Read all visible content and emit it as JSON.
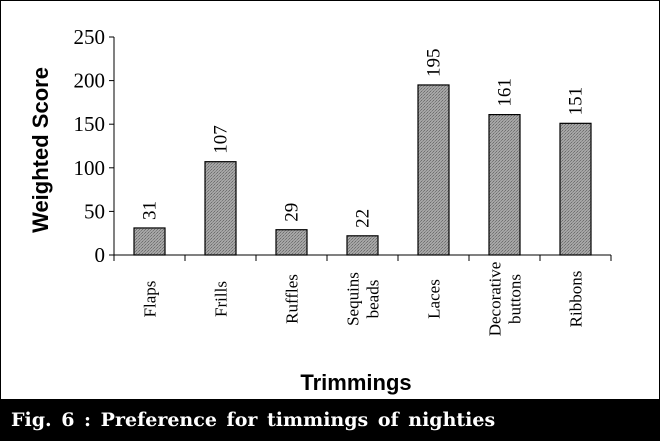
{
  "chart_data": {
    "type": "bar",
    "categories": [
      [
        "Flaps"
      ],
      [
        "Frills"
      ],
      [
        "Ruffles"
      ],
      [
        "Sequins",
        "beads"
      ],
      [
        "Laces"
      ],
      [
        "Decorative",
        "buttons"
      ],
      [
        "Ribbons"
      ]
    ],
    "values": [
      31,
      107,
      29,
      22,
      195,
      161,
      151
    ],
    "data_labels": [
      "31",
      "107",
      "29",
      "22",
      "195",
      "161",
      "151"
    ],
    "xlabel": "Trimmings",
    "ylabel": "Weighted Score",
    "ylim": [
      0,
      250
    ],
    "yticks": [
      0,
      50,
      100,
      150,
      200,
      250
    ],
    "grid": false,
    "legend": "none",
    "bar_fill": "#999999",
    "bar_stroke": "#000000"
  },
  "caption": "Fig. 6 : Preference for timmings of nighties"
}
